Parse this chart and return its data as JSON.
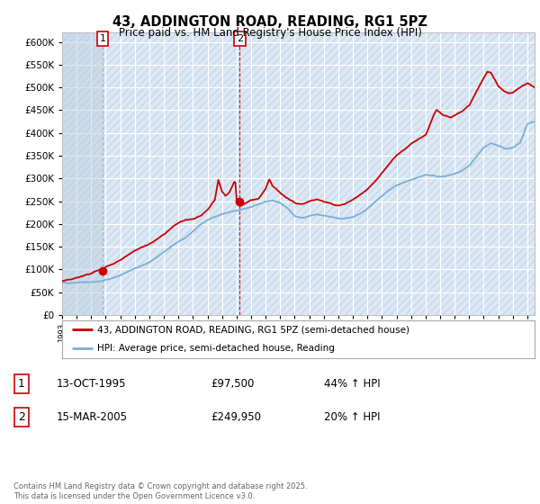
{
  "title": "43, ADDINGTON ROAD, READING, RG1 5PZ",
  "subtitle": "Price paid vs. HM Land Registry's House Price Index (HPI)",
  "legend_line1": "43, ADDINGTON ROAD, READING, RG1 5PZ (semi-detached house)",
  "legend_line2": "HPI: Average price, semi-detached house, Reading",
  "footer": "Contains HM Land Registry data © Crown copyright and database right 2025.\nThis data is licensed under the Open Government Licence v3.0.",
  "sale1_label": "1",
  "sale1_date": "13-OCT-1995",
  "sale1_price": "£97,500",
  "sale1_hpi": "44% ↑ HPI",
  "sale2_label": "2",
  "sale2_date": "15-MAR-2005",
  "sale2_price": "£249,950",
  "sale2_hpi": "20% ↑ HPI",
  "sale1_x": 1995.79,
  "sale1_y": 97500,
  "sale2_x": 2005.21,
  "sale2_y": 249950,
  "color_price": "#cc0000",
  "color_hpi": "#7bafd4",
  "color_bg": "#ffffff",
  "color_plot_bg": "#dce8f5",
  "color_hatch": "#c8d8e8",
  "ylim_min": 0,
  "ylim_max": 620000,
  "yticks": [
    0,
    50000,
    100000,
    150000,
    200000,
    250000,
    300000,
    350000,
    400000,
    450000,
    500000,
    550000,
    600000
  ],
  "xmin": 1993.0,
  "xmax": 2025.5
}
